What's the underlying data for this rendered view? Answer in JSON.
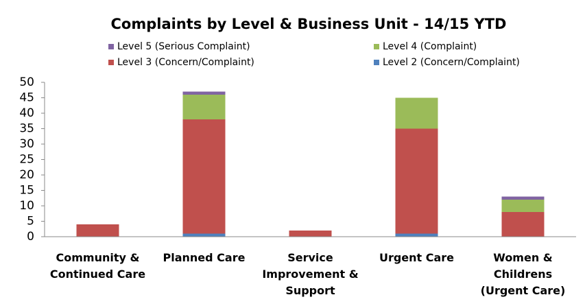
{
  "chart_data": {
    "type": "stacked_bar",
    "title": "Complaints by Level & Business Unit  - 14/15 YTD",
    "categories": [
      "Community & Continued Care",
      "Planned Care",
      "Service Improvement & Support",
      "Urgent Care",
      "Women & Childrens (Urgent Care)"
    ],
    "series": [
      {
        "name": "Level 2 (Concern/Complaint)",
        "color": "#4f81bd",
        "values": [
          0,
          1,
          0,
          1,
          0
        ]
      },
      {
        "name": "Level 3 (Concern/Complaint)",
        "color": "#c0504d",
        "values": [
          4,
          37,
          2,
          34,
          8
        ]
      },
      {
        "name": "Level 4 (Complaint)",
        "color": "#9bbb59",
        "values": [
          0,
          8,
          0,
          10,
          4
        ]
      },
      {
        "name": "Level 5 (Serious Complaint)",
        "color": "#8064a2",
        "values": [
          0,
          1,
          0,
          0,
          1
        ]
      }
    ],
    "ylim": [
      0,
      50
    ],
    "yticks": [
      0,
      5,
      10,
      15,
      20,
      25,
      30,
      35,
      40,
      45,
      50
    ],
    "grid": false
  }
}
